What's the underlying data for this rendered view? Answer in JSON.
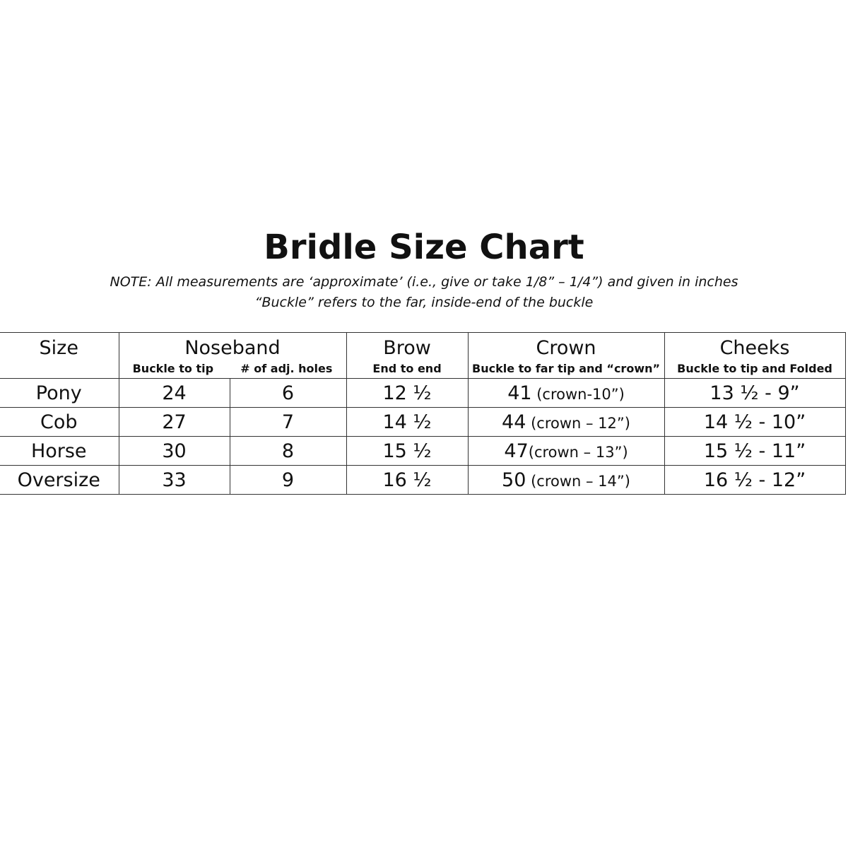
{
  "title": "Bridle Size Chart",
  "notes": [
    "NOTE:  All measurements are ‘approximate’ (i.e., give or take 1/8” – 1/4”) and given in inches",
    "“Buckle” refers to the far, inside-end of the buckle"
  ],
  "headers": {
    "size": "Size",
    "noseband": "Noseband",
    "noseband_sub1": "Buckle to tip",
    "noseband_sub2": "# of adj. holes",
    "brow": "Brow",
    "brow_sub": "End to end",
    "crown": "Crown",
    "crown_sub": "Buckle to far tip and “crown”",
    "cheeks": "Cheeks",
    "cheeks_sub": "Buckle to tip and Folded"
  },
  "rows": [
    {
      "size": "Pony",
      "buckle_to_tip": "24",
      "holes": "6",
      "brow": "12 ½",
      "crown": "41",
      "crown_note": " (crown-10”)",
      "cheeks": "13 ½ - 9”"
    },
    {
      "size": "Cob",
      "buckle_to_tip": "27",
      "holes": "7",
      "brow": "14 ½",
      "crown": "44",
      "crown_note": " (crown – 12”)",
      "cheeks": "14 ½ - 10”"
    },
    {
      "size": "Horse",
      "buckle_to_tip": "30",
      "holes": "8",
      "brow": "15 ½",
      "crown": "47",
      "crown_note": "(crown – 13”)",
      "cheeks": "15 ½ - 11”"
    },
    {
      "size": "Oversize",
      "buckle_to_tip": "33",
      "holes": "9",
      "brow": "16 ½",
      "crown": "50",
      "crown_note": " (crown – 14”)",
      "cheeks": "16 ½ - 12”"
    }
  ]
}
